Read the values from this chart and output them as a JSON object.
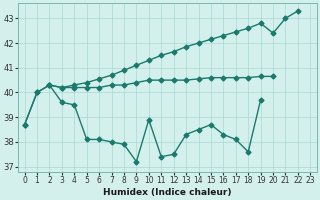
{
  "x": [
    0,
    1,
    2,
    3,
    4,
    5,
    6,
    7,
    8,
    9,
    10,
    11,
    12,
    13,
    14,
    15,
    16,
    17,
    18,
    19,
    20,
    21,
    22
  ],
  "y_jagged": [
    38.7,
    40.0,
    40.3,
    39.6,
    39.5,
    38.1,
    38.1,
    38.0,
    37.9,
    37.2,
    38.9,
    37.4,
    37.5,
    38.3,
    38.5,
    38.7,
    38.3,
    38.1,
    37.6,
    39.7,
    null,
    null,
    null
  ],
  "y_flat": [
    null,
    null,
    40.3,
    40.2,
    40.2,
    40.2,
    40.2,
    40.3,
    40.3,
    40.4,
    40.5,
    40.5,
    40.5,
    40.5,
    40.55,
    40.6,
    40.6,
    40.6,
    40.6,
    40.65,
    40.65,
    null,
    null
  ],
  "y_diag": [
    38.7,
    40.0,
    40.3,
    40.2,
    40.3,
    40.4,
    40.55,
    40.7,
    40.9,
    41.1,
    41.3,
    41.5,
    41.65,
    41.85,
    42.0,
    42.15,
    42.3,
    42.45,
    42.6,
    42.8,
    42.4,
    43.0,
    43.3
  ],
  "xlabel": "Humidex (Indice chaleur)",
  "xlim": [
    -0.5,
    23.5
  ],
  "ylim": [
    36.8,
    43.6
  ],
  "yticks": [
    37,
    38,
    39,
    40,
    41,
    42,
    43
  ],
  "xtick_labels": [
    "0",
    "1",
    "2",
    "3",
    "4",
    "5",
    "6",
    "7",
    "8",
    "9",
    "10",
    "11",
    "12",
    "13",
    "14",
    "15",
    "16",
    "17",
    "18",
    "19",
    "20",
    "21",
    "22",
    "23"
  ],
  "color": "#1a7a6e",
  "bg_color": "#d4f0ec",
  "grid_color": "#aad8d3",
  "marker": "D",
  "marker_size": 2.5,
  "linewidth": 1.0
}
